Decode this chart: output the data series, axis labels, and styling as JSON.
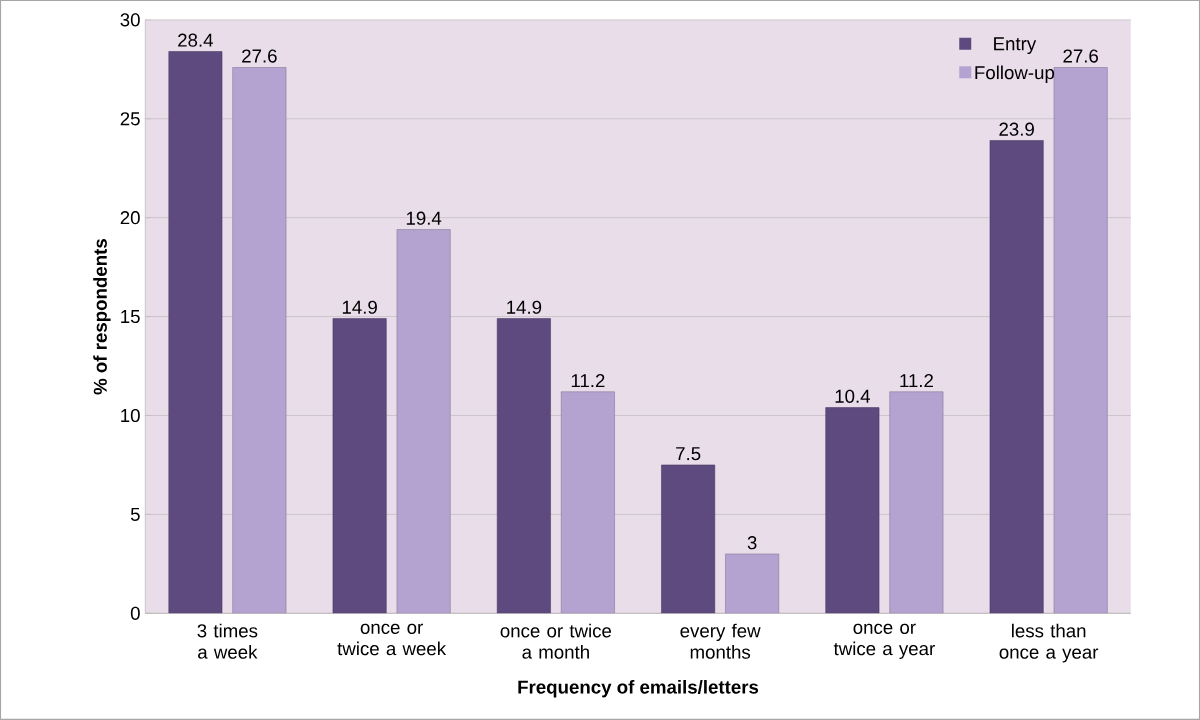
{
  "chart_data": {
    "type": "bar",
    "xlabel": "Frequency of emails/letters",
    "ylabel": "% of respondents",
    "categories": [
      "3 times a week",
      "once or twice a week",
      "once or twice a month",
      "every few months",
      "once or twice a year",
      "less than once a year"
    ],
    "series": [
      {
        "name": "Entry",
        "color": "#5f4a80",
        "values": [
          28.4,
          14.9,
          14.9,
          7.5,
          10.4,
          23.9
        ]
      },
      {
        "name": "Follow-up",
        "color": "#b4a3d0",
        "values": [
          27.6,
          19.4,
          11.2,
          3,
          11.2,
          27.6
        ]
      }
    ],
    "ylim": [
      0,
      30
    ],
    "yticks": [
      0,
      5,
      10,
      15,
      20,
      25,
      30
    ],
    "grid": "y",
    "legend": "top right",
    "data_labels": true
  }
}
